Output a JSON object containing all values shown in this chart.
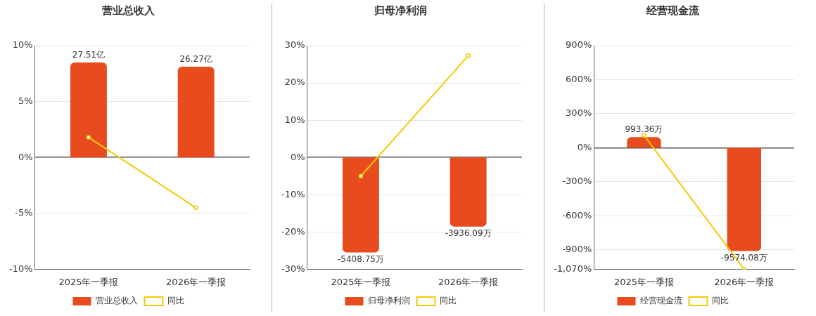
{
  "chart_data": [
    {
      "type": "bar",
      "title": "营业总收入",
      "categories": [
        "2025年一季报",
        "2026年一季报"
      ],
      "series": [
        {
          "name": "营业总收入",
          "axis": "y2",
          "color": "#e84c1e",
          "values": [
            27.51,
            26.27
          ],
          "value_labels": [
            "27.51亿",
            "26.27亿"
          ]
        },
        {
          "name": "同比",
          "type": "line",
          "color": "#f2cb05",
          "values": [
            1.8,
            -4.5
          ]
        }
      ],
      "ylim": [
        -10,
        10
      ],
      "yticks": [
        {
          "value": 10,
          "label": "10%"
        },
        {
          "value": 5,
          "label": "5%"
        },
        {
          "value": 0,
          "label": "0%"
        },
        {
          "value": -5,
          "label": "-5%"
        },
        {
          "value": -10,
          "label": "-10%"
        }
      ],
      "grid": "y",
      "legend": "bottom",
      "marker": "circle"
    },
    {
      "type": "bar",
      "title": "归母净利润",
      "categories": [
        "2025年一季报",
        "2026年一季报"
      ],
      "series": [
        {
          "name": "归母净利润",
          "axis": "y2",
          "color": "#e84c1e",
          "values": [
            -5408.75,
            -3936.09
          ],
          "value_labels": [
            "-5408.75万",
            "-3936.09万"
          ]
        },
        {
          "name": "同比",
          "type": "line",
          "color": "#f2cb05",
          "values": [
            -5,
            27.3
          ]
        }
      ],
      "ylim": [
        -30,
        30
      ],
      "yticks": [
        {
          "value": 30,
          "label": "30%"
        },
        {
          "value": 20,
          "label": "20%"
        },
        {
          "value": 10,
          "label": "10%"
        },
        {
          "value": 0,
          "label": "0%"
        },
        {
          "value": -10,
          "label": "-10%"
        },
        {
          "value": -20,
          "label": "-20%"
        },
        {
          "value": -30,
          "label": "-30%"
        }
      ],
      "grid": "y",
      "legend": "bottom",
      "marker": "circle"
    },
    {
      "type": "bar",
      "title": "经营现金流",
      "categories": [
        "2025年一季报",
        "2026年一季报"
      ],
      "series": [
        {
          "name": "经营现金流",
          "axis": "y2",
          "color": "#e84c1e",
          "values": [
            993.36,
            -9574.08
          ],
          "value_labels": [
            "993.36万",
            "-9574.08万"
          ]
        },
        {
          "name": "同比",
          "type": "line",
          "color": "#f2cb05",
          "values": [
            110,
            -1070
          ]
        }
      ],
      "ylim": [
        -1070,
        900
      ],
      "yticks": [
        {
          "value": 900,
          "label": "900%"
        },
        {
          "value": 600,
          "label": "600%"
        },
        {
          "value": 300,
          "label": "300%"
        },
        {
          "value": 0,
          "label": "0%"
        },
        {
          "value": -300,
          "label": "-300%"
        },
        {
          "value": -600,
          "label": "-600%"
        },
        {
          "value": -900,
          "label": "-900%"
        },
        {
          "value": -1070,
          "label": "-1,070%"
        }
      ],
      "grid": "y",
      "legend": "bottom",
      "marker": "circle"
    }
  ]
}
